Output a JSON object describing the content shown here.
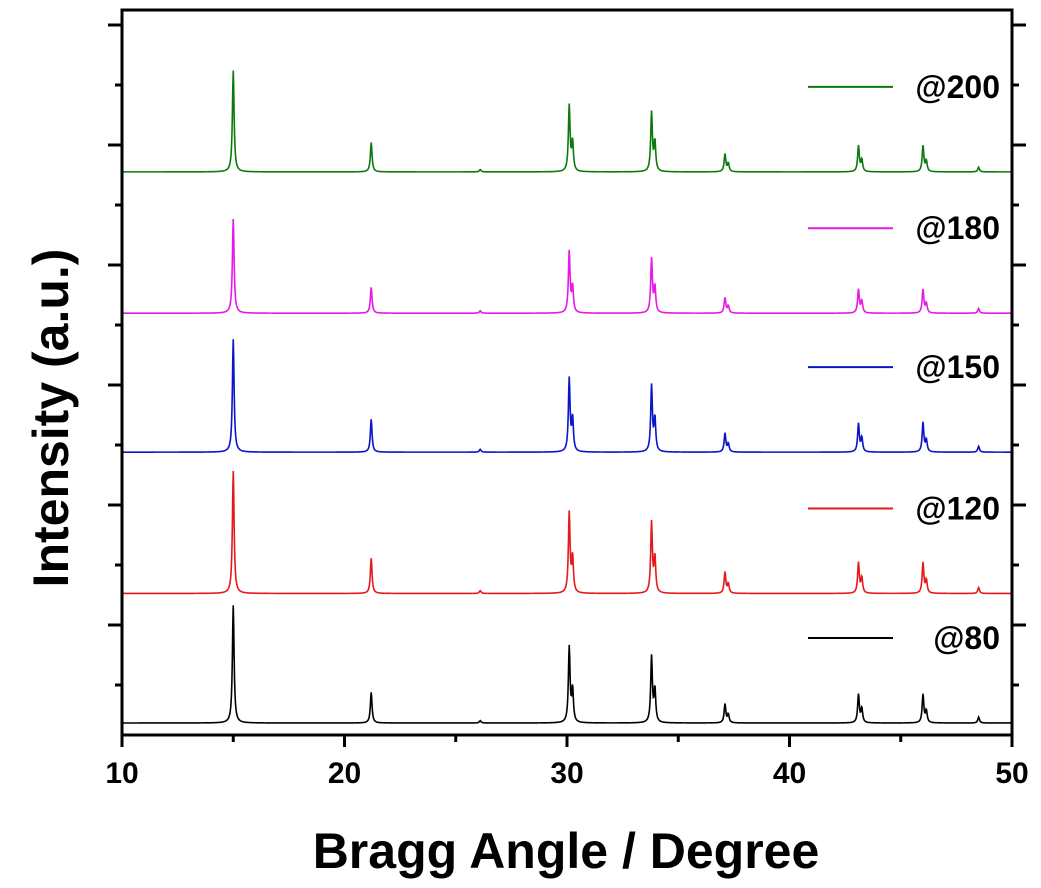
{
  "chart_data": {
    "type": "line",
    "title": "",
    "xlabel": "Bragg Angle / Degree",
    "ylabel": "Intensity (a.u.)",
    "xlim": [
      10,
      50
    ],
    "x_ticks": [
      "10",
      "20",
      "30",
      "40",
      "50"
    ],
    "y_ticks_labeled": false,
    "grid": false,
    "stacked_offset": true,
    "legend": "per-series labels at right of each trace",
    "peaks_x": [
      15.0,
      21.2,
      26.1,
      30.1,
      30.25,
      33.8,
      33.95,
      37.1,
      37.25,
      43.1,
      43.25,
      46.0,
      46.15,
      48.5
    ],
    "series": [
      {
        "name": "@80",
        "color": "#000000",
        "baseline": 0.0,
        "peak_heights": [
          5.0,
          1.3,
          0.1,
          3.2,
          1.4,
          2.8,
          1.4,
          0.8,
          0.35,
          1.2,
          0.6,
          1.2,
          0.5,
          0.25
        ]
      },
      {
        "name": "@120",
        "color": "#e41a1a",
        "baseline": 5.5,
        "peak_heights": [
          5.2,
          1.5,
          0.12,
          3.4,
          1.5,
          3.0,
          1.5,
          0.9,
          0.4,
          1.3,
          0.65,
          1.3,
          0.55,
          0.25
        ]
      },
      {
        "name": "@150",
        "color": "#0a14c8",
        "baseline": 11.5,
        "peak_heights": [
          4.8,
          1.4,
          0.12,
          3.1,
          1.4,
          2.8,
          1.4,
          0.8,
          0.35,
          1.2,
          0.6,
          1.25,
          0.5,
          0.25
        ]
      },
      {
        "name": "@180",
        "color": "#e619e6",
        "baseline": 17.4,
        "peak_heights": [
          4.0,
          1.1,
          0.1,
          2.6,
          1.1,
          2.3,
          1.1,
          0.65,
          0.3,
          1.0,
          0.5,
          1.0,
          0.4,
          0.2
        ]
      },
      {
        "name": "@200",
        "color": "#0b7a0b",
        "baseline": 23.4,
        "peak_heights": [
          4.3,
          1.25,
          0.1,
          2.8,
          1.25,
          2.5,
          1.25,
          0.75,
          0.35,
          1.1,
          0.5,
          1.1,
          0.45,
          0.2
        ]
      }
    ]
  }
}
